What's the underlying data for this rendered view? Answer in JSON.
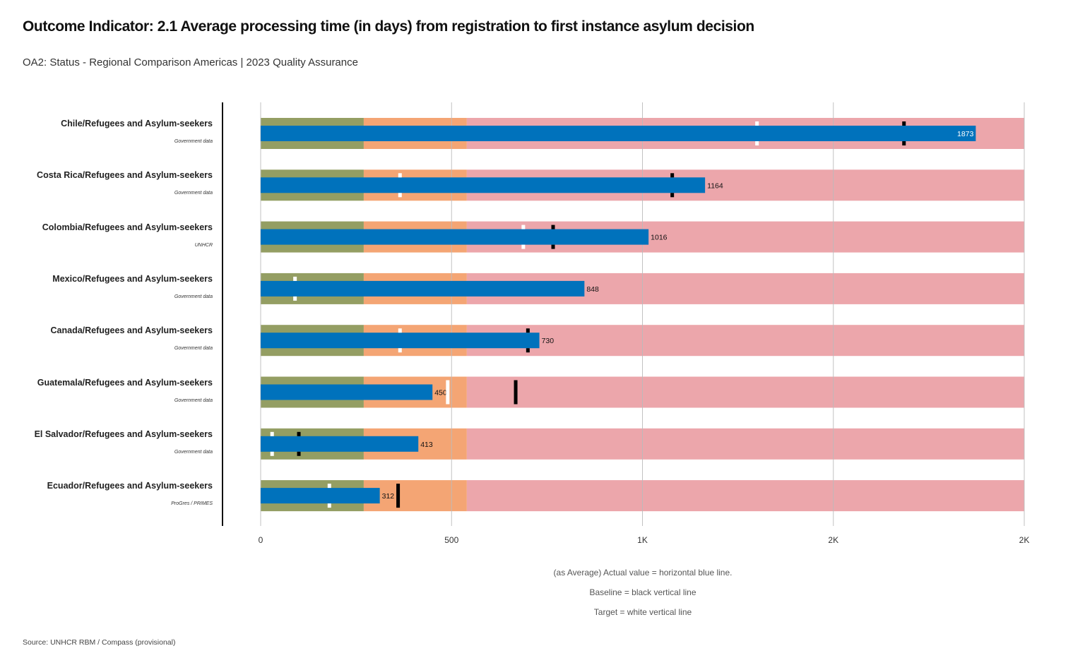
{
  "title": "Outcome Indicator: 2.1 Average processing time (in days) from registration to first instance asylum decision",
  "subtitle": "OA2: Status - Regional Comparison Americas | 2023 Quality Assurance",
  "legend": {
    "actual": "(as Average) Actual value = horizontal blue line.",
    "baseline": "Baseline = black vertical line",
    "target": "Target = white vertical line"
  },
  "source": "Source: UNHCR RBM / Compass (provisional)",
  "colors": {
    "band_green": "#949e63",
    "band_orange": "#f4a574",
    "band_pink": "#eca6ab",
    "actual_bar": "#0072bc",
    "baseline_marker": "#000000",
    "target_marker": "#ffffff",
    "gridline": "#bbbbbb"
  },
  "chart_data": {
    "type": "bullet",
    "xlim": [
      0,
      2000
    ],
    "xticks": [
      0,
      500,
      1000,
      1500,
      2000
    ],
    "xtick_labels": [
      "0",
      "500",
      "1K",
      "2K",
      "2K"
    ],
    "bands": [
      {
        "name": "green",
        "from": 0,
        "to": 270
      },
      {
        "name": "orange",
        "from": 270,
        "to": 540
      },
      {
        "name": "pink",
        "from": 540,
        "to": 2000
      }
    ],
    "rows": [
      {
        "label": "Chile/Refugees and Asylum-seekers",
        "source": "Government data",
        "actual": 1873,
        "baseline": 1685,
        "target": 1300
      },
      {
        "label": "Costa Rica/Refugees and Asylum-seekers",
        "source": "Government data",
        "actual": 1164,
        "baseline": 1078,
        "target": 365
      },
      {
        "label": "Colombia/Refugees and Asylum-seekers",
        "source": "UNHCR",
        "actual": 1016,
        "baseline": 766,
        "target": 688
      },
      {
        "label": "Mexico/Refugees and Asylum-seekers",
        "source": "Government data",
        "actual": 848,
        "baseline": null,
        "target": 90
      },
      {
        "label": "Canada/Refugees and Asylum-seekers",
        "source": "Government data",
        "actual": 730,
        "baseline": 700,
        "target": 365
      },
      {
        "label": "Guatemala/Refugees and Asylum-seekers",
        "source": "Government data",
        "actual": 450,
        "baseline": 668,
        "target": 490
      },
      {
        "label": "El Salvador/Refugees and Asylum-seekers",
        "source": "Government data",
        "actual": 413,
        "baseline": 100,
        "target": 30
      },
      {
        "label": "Ecuador/Refugees and Asylum-seekers",
        "source": "ProGres / PRIMES",
        "actual": 312,
        "baseline": 360,
        "target": 180
      }
    ]
  }
}
